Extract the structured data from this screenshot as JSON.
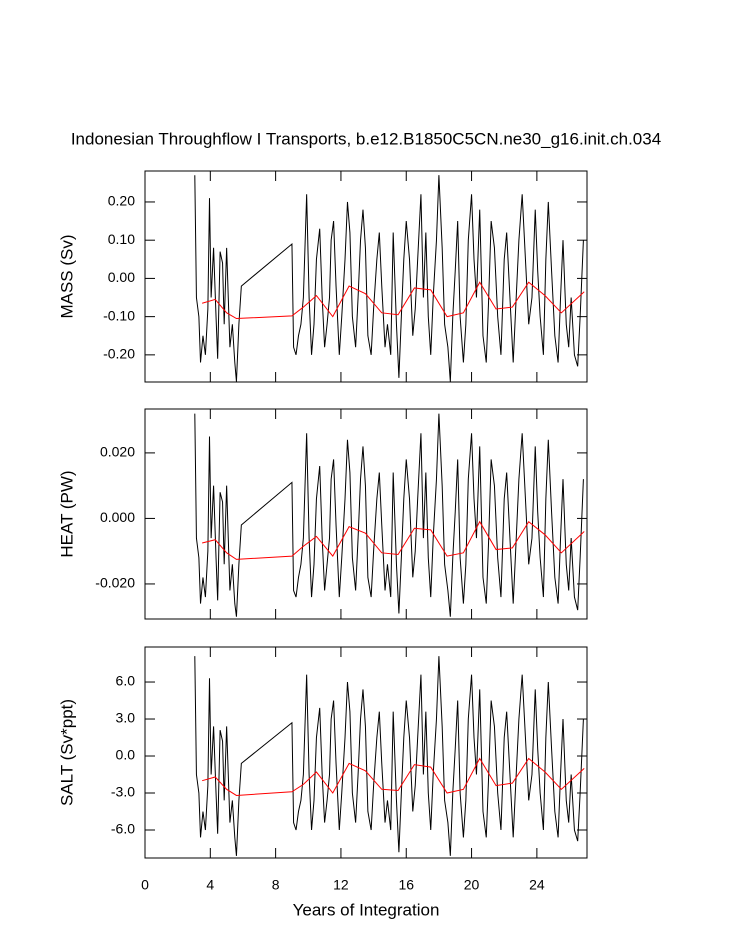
{
  "title": "Indonesian Throughflow I Transports, b.e12.B1850C5CN.ne30_g16.init.ch.034",
  "chart_data": [
    {
      "type": "line",
      "ylabel": "MASS (Sv)",
      "xlim": [
        0,
        27.07
      ],
      "ylim": [
        -0.271,
        0.281
      ],
      "yticks": [
        {
          "value": -0.2,
          "label": "-0.20"
        },
        {
          "value": -0.1,
          "label": "-0.10"
        },
        {
          "value": 0,
          "label": "0.00"
        },
        {
          "value": 0.1,
          "label": "0.10"
        },
        {
          "value": 0.2,
          "label": "0.20"
        }
      ],
      "series": [
        {
          "color": "#000000",
          "x": [
            3.05,
            3.15,
            3.3,
            3.4,
            3.55,
            3.7,
            3.85,
            3.95,
            4.05,
            4.2,
            4.35,
            4.45,
            4.6,
            4.75,
            4.85,
            5.0,
            5.1,
            5.2,
            5.35,
            5.5,
            5.6,
            5.75,
            5.9,
            9.0,
            9.1,
            9.25,
            9.4,
            9.55,
            9.7,
            9.9,
            10.05,
            10.2,
            10.35,
            10.5,
            10.7,
            10.85,
            11.0,
            11.15,
            11.3,
            11.4,
            11.55,
            11.7,
            11.9,
            12.05,
            12.25,
            12.4,
            12.55,
            12.7,
            12.9,
            13.05,
            13.2,
            13.35,
            13.5,
            13.65,
            13.85,
            14.0,
            14.2,
            14.35,
            14.5,
            14.7,
            14.85,
            15.05,
            15.2,
            15.4,
            15.55,
            15.7,
            15.85,
            16.0,
            16.2,
            16.4,
            16.55,
            16.7,
            16.9,
            17.05,
            17.2,
            17.35,
            17.5,
            17.65,
            17.85,
            18.0,
            18.2,
            18.35,
            18.55,
            18.7,
            18.85,
            19.0,
            19.15,
            19.3,
            19.5,
            19.65,
            19.8,
            20.0,
            20.15,
            20.3,
            20.5,
            20.7,
            20.9,
            21.05,
            21.2,
            21.4,
            21.6,
            21.8,
            22.0,
            22.15,
            22.35,
            22.55,
            22.7,
            22.9,
            23.1,
            23.3,
            23.5,
            23.7,
            23.9,
            24.05,
            24.2,
            24.4,
            24.55,
            24.7,
            24.9,
            25.1,
            25.3,
            25.45,
            25.6,
            25.8,
            25.95,
            26.1,
            26.3,
            26.5,
            26.65,
            26.85
          ],
          "values": [
            0.27,
            -0.05,
            -0.1,
            -0.22,
            -0.15,
            -0.2,
            -0.08,
            0.21,
            -0.05,
            0.08,
            -0.1,
            -0.21,
            0.07,
            0.04,
            -0.12,
            0.08,
            -0.05,
            -0.18,
            -0.12,
            -0.22,
            -0.27,
            -0.12,
            -0.02,
            0.09,
            -0.18,
            -0.2,
            -0.15,
            -0.12,
            -0.05,
            0.22,
            -0.05,
            -0.2,
            -0.12,
            0.05,
            0.13,
            -0.05,
            -0.18,
            -0.12,
            -0.05,
            0.1,
            0.15,
            -0.02,
            -0.2,
            -0.1,
            0.05,
            0.2,
            0.12,
            -0.1,
            -0.18,
            -0.05,
            0.1,
            0.18,
            0.08,
            -0.15,
            -0.2,
            -0.08,
            0.05,
            0.12,
            -0.02,
            -0.18,
            -0.12,
            -0.2,
            0.12,
            -0.12,
            -0.26,
            -0.1,
            0.05,
            0.15,
            0.05,
            -0.15,
            -0.08,
            0.05,
            0.22,
            -0.05,
            0.12,
            -0.1,
            -0.2,
            -0.05,
            0.1,
            0.27,
            0.08,
            -0.12,
            -0.18,
            -0.27,
            -0.1,
            0.02,
            0.15,
            -0.1,
            -0.22,
            -0.12,
            0.1,
            0.22,
            0.05,
            -0.05,
            0.18,
            -0.15,
            -0.22,
            -0.05,
            0.15,
            0.08,
            -0.1,
            -0.2,
            0.05,
            0.12,
            -0.05,
            -0.22,
            -0.08,
            0.1,
            0.22,
            0.05,
            -0.12,
            -0.05,
            0.18,
            0.02,
            -0.1,
            -0.2,
            0.05,
            0.2,
            0.02,
            -0.15,
            -0.22,
            -0.05,
            0.1,
            -0.12,
            -0.18,
            -0.05,
            -0.2,
            -0.23,
            -0.1,
            0.1
          ]
        },
        {
          "color": "#ff0000",
          "x": [
            3.5,
            4.3,
            5.0,
            5.6,
            9.0,
            9.7,
            10.5,
            11.5,
            12.5,
            13.5,
            14.5,
            15.5,
            16.5,
            17.5,
            18.5,
            19.5,
            20.5,
            21.5,
            22.5,
            23.5,
            24.5,
            25.5,
            26.9
          ],
          "values": [
            -0.065,
            -0.055,
            -0.09,
            -0.105,
            -0.098,
            -0.075,
            -0.045,
            -0.1,
            -0.02,
            -0.04,
            -0.09,
            -0.095,
            -0.025,
            -0.03,
            -0.1,
            -0.09,
            -0.01,
            -0.08,
            -0.075,
            -0.01,
            -0.045,
            -0.09,
            -0.035
          ]
        }
      ]
    },
    {
      "type": "line",
      "ylabel": "HEAT (PW)",
      "xlim": [
        0,
        27.07
      ],
      "ylim": [
        -0.0307,
        0.0334
      ],
      "yticks": [
        {
          "value": -0.02,
          "label": "-0.020"
        },
        {
          "value": 0,
          "label": "0.000"
        },
        {
          "value": 0.02,
          "label": "0.020"
        }
      ],
      "series": [
        {
          "color": "#000000",
          "x": [
            3.05,
            3.15,
            3.3,
            3.4,
            3.55,
            3.7,
            3.85,
            3.95,
            4.05,
            4.2,
            4.35,
            4.45,
            4.6,
            4.75,
            4.85,
            5.0,
            5.1,
            5.2,
            5.35,
            5.5,
            5.6,
            5.75,
            5.9,
            9.0,
            9.1,
            9.25,
            9.4,
            9.55,
            9.7,
            9.9,
            10.05,
            10.2,
            10.35,
            10.5,
            10.7,
            10.85,
            11.0,
            11.15,
            11.3,
            11.4,
            11.55,
            11.7,
            11.9,
            12.05,
            12.25,
            12.4,
            12.55,
            12.7,
            12.9,
            13.05,
            13.2,
            13.35,
            13.5,
            13.65,
            13.85,
            14.0,
            14.2,
            14.35,
            14.5,
            14.7,
            14.85,
            15.05,
            15.2,
            15.4,
            15.55,
            15.7,
            15.85,
            16.0,
            16.2,
            16.4,
            16.55,
            16.7,
            16.9,
            17.05,
            17.2,
            17.35,
            17.5,
            17.65,
            17.85,
            18.0,
            18.2,
            18.35,
            18.55,
            18.7,
            18.85,
            19.0,
            19.15,
            19.3,
            19.5,
            19.65,
            19.8,
            20.0,
            20.15,
            20.3,
            20.5,
            20.7,
            20.9,
            21.05,
            21.2,
            21.4,
            21.6,
            21.8,
            22.0,
            22.15,
            22.35,
            22.55,
            22.7,
            22.9,
            23.1,
            23.3,
            23.5,
            23.7,
            23.9,
            24.05,
            24.2,
            24.4,
            24.55,
            24.7,
            24.9,
            25.1,
            25.3,
            25.45,
            25.6,
            25.8,
            25.95,
            26.1,
            26.3,
            26.5,
            26.65,
            26.85
          ],
          "values": [
            0.032,
            -0.006,
            -0.012,
            -0.026,
            -0.018,
            -0.024,
            -0.01,
            0.025,
            -0.006,
            0.01,
            -0.012,
            -0.025,
            0.008,
            0.005,
            -0.014,
            0.01,
            -0.006,
            -0.022,
            -0.014,
            -0.026,
            -0.03,
            -0.014,
            -0.002,
            0.011,
            -0.022,
            -0.024,
            -0.018,
            -0.014,
            -0.006,
            0.026,
            -0.006,
            -0.024,
            -0.014,
            0.006,
            0.016,
            -0.006,
            -0.022,
            -0.014,
            -0.006,
            0.012,
            0.018,
            -0.002,
            -0.024,
            -0.012,
            0.006,
            0.024,
            0.014,
            -0.012,
            -0.022,
            -0.006,
            0.012,
            0.022,
            0.01,
            -0.018,
            -0.024,
            -0.01,
            0.006,
            0.014,
            -0.002,
            -0.022,
            -0.014,
            -0.024,
            0.014,
            -0.014,
            -0.029,
            -0.012,
            0.006,
            0.018,
            0.006,
            -0.018,
            -0.01,
            0.006,
            0.026,
            -0.006,
            0.014,
            -0.012,
            -0.024,
            -0.006,
            0.012,
            0.032,
            0.01,
            -0.014,
            -0.022,
            -0.03,
            -0.012,
            0.002,
            0.018,
            -0.012,
            -0.026,
            -0.014,
            0.012,
            0.026,
            0.006,
            -0.006,
            0.022,
            -0.018,
            -0.026,
            -0.006,
            0.018,
            0.01,
            -0.012,
            -0.024,
            0.006,
            0.014,
            -0.006,
            -0.026,
            -0.01,
            0.012,
            0.026,
            0.006,
            -0.014,
            -0.006,
            0.022,
            0.002,
            -0.012,
            -0.024,
            0.006,
            0.024,
            0.002,
            -0.018,
            -0.026,
            -0.006,
            0.012,
            -0.014,
            -0.022,
            -0.006,
            -0.024,
            -0.028,
            -0.012,
            0.012
          ]
        },
        {
          "color": "#ff0000",
          "x": [
            3.5,
            4.3,
            5.0,
            5.6,
            9.0,
            9.7,
            10.5,
            11.5,
            12.5,
            13.5,
            14.5,
            15.5,
            16.5,
            17.5,
            18.5,
            19.5,
            20.5,
            21.5,
            22.5,
            23.5,
            24.5,
            25.5,
            26.9
          ],
          "values": [
            -0.0075,
            -0.0065,
            -0.0105,
            -0.0125,
            -0.0115,
            -0.0085,
            -0.0055,
            -0.0115,
            -0.0025,
            -0.0045,
            -0.0105,
            -0.011,
            -0.003,
            -0.0035,
            -0.0115,
            -0.0105,
            -0.001,
            -0.0095,
            -0.009,
            -0.001,
            -0.005,
            -0.0105,
            -0.004
          ]
        }
      ]
    },
    {
      "type": "line",
      "ylabel": "SALT (Sv*ppt)",
      "xlabel": "Years of Integration",
      "xlim": [
        0,
        27.07
      ],
      "xticks": [
        0,
        4,
        8,
        12,
        16,
        20,
        24
      ],
      "ylim": [
        -8.27,
        8.84
      ],
      "yticks": [
        {
          "value": -6,
          "label": "-6.0"
        },
        {
          "value": -3,
          "label": "-3.0"
        },
        {
          "value": 0,
          "label": "0.0"
        },
        {
          "value": 3,
          "label": "3.0"
        },
        {
          "value": 6,
          "label": "6.0"
        }
      ],
      "series": [
        {
          "color": "#000000",
          "x": [
            3.05,
            3.15,
            3.3,
            3.4,
            3.55,
            3.7,
            3.85,
            3.95,
            4.05,
            4.2,
            4.35,
            4.45,
            4.6,
            4.75,
            4.85,
            5.0,
            5.1,
            5.2,
            5.35,
            5.5,
            5.6,
            5.75,
            5.9,
            9.0,
            9.1,
            9.25,
            9.4,
            9.55,
            9.7,
            9.9,
            10.05,
            10.2,
            10.35,
            10.5,
            10.7,
            10.85,
            11.0,
            11.15,
            11.3,
            11.4,
            11.55,
            11.7,
            11.9,
            12.05,
            12.25,
            12.4,
            12.55,
            12.7,
            12.9,
            13.05,
            13.2,
            13.35,
            13.5,
            13.65,
            13.85,
            14.0,
            14.2,
            14.35,
            14.5,
            14.7,
            14.85,
            15.05,
            15.2,
            15.4,
            15.55,
            15.7,
            15.85,
            16.0,
            16.2,
            16.4,
            16.55,
            16.7,
            16.9,
            17.05,
            17.2,
            17.35,
            17.5,
            17.65,
            17.85,
            18.0,
            18.2,
            18.35,
            18.55,
            18.7,
            18.85,
            19.0,
            19.15,
            19.3,
            19.5,
            19.65,
            19.8,
            20.0,
            20.15,
            20.3,
            20.5,
            20.7,
            20.9,
            21.05,
            21.2,
            21.4,
            21.6,
            21.8,
            22.0,
            22.15,
            22.35,
            22.55,
            22.7,
            22.9,
            23.1,
            23.3,
            23.5,
            23.7,
            23.9,
            24.05,
            24.2,
            24.4,
            24.55,
            24.7,
            24.9,
            25.1,
            25.3,
            25.45,
            25.6,
            25.8,
            25.95,
            26.1,
            26.3,
            26.5,
            26.65,
            26.85
          ],
          "values": [
            8.1,
            -1.5,
            -3.0,
            -6.6,
            -4.5,
            -6.0,
            -2.4,
            6.3,
            -1.5,
            2.4,
            -3.0,
            -6.3,
            2.1,
            1.2,
            -3.6,
            2.4,
            -1.5,
            -5.4,
            -3.6,
            -6.6,
            -8.1,
            -3.6,
            -0.6,
            2.7,
            -5.4,
            -6.0,
            -4.5,
            -3.6,
            -1.5,
            6.6,
            -1.5,
            -6.0,
            -3.6,
            1.5,
            3.9,
            -1.5,
            -5.4,
            -3.6,
            -1.5,
            3.0,
            4.5,
            -0.6,
            -6.0,
            -3.0,
            1.5,
            6.0,
            3.6,
            -3.0,
            -5.4,
            -1.5,
            3.0,
            5.4,
            2.4,
            -4.5,
            -6.0,
            -2.4,
            1.5,
            3.6,
            -0.6,
            -5.4,
            -3.6,
            -6.0,
            3.6,
            -3.6,
            -7.8,
            -3.0,
            1.5,
            4.5,
            1.5,
            -4.5,
            -2.4,
            1.5,
            6.6,
            -1.5,
            3.6,
            -3.0,
            -6.0,
            -1.5,
            3.0,
            8.1,
            2.4,
            -3.6,
            -5.4,
            -8.1,
            -3.0,
            0.6,
            4.5,
            -3.0,
            -6.6,
            -3.6,
            3.0,
            6.6,
            1.5,
            -1.5,
            5.4,
            -4.5,
            -6.6,
            -1.5,
            4.5,
            2.4,
            -3.0,
            -6.0,
            1.5,
            3.6,
            -1.5,
            -6.6,
            -2.4,
            3.0,
            6.6,
            1.5,
            -3.6,
            -1.5,
            5.4,
            0.6,
            -3.0,
            -6.0,
            1.5,
            6.0,
            0.6,
            -4.5,
            -6.6,
            -1.5,
            3.0,
            -3.6,
            -5.4,
            -1.5,
            -6.0,
            -6.9,
            -3.0,
            3.0
          ]
        },
        {
          "color": "#ff0000",
          "x": [
            3.5,
            4.3,
            5.0,
            5.6,
            9.0,
            9.7,
            10.5,
            11.5,
            12.5,
            13.5,
            14.5,
            15.5,
            16.5,
            17.5,
            18.5,
            19.5,
            20.5,
            21.5,
            22.5,
            23.5,
            24.5,
            25.5,
            26.9
          ],
          "values": [
            -2.0,
            -1.7,
            -2.7,
            -3.2,
            -2.9,
            -2.3,
            -1.3,
            -3.0,
            -0.6,
            -1.2,
            -2.7,
            -2.8,
            -0.7,
            -0.9,
            -3.0,
            -2.7,
            -0.2,
            -2.4,
            -2.2,
            -0.2,
            -1.3,
            -2.7,
            -1.0
          ]
        }
      ]
    }
  ]
}
